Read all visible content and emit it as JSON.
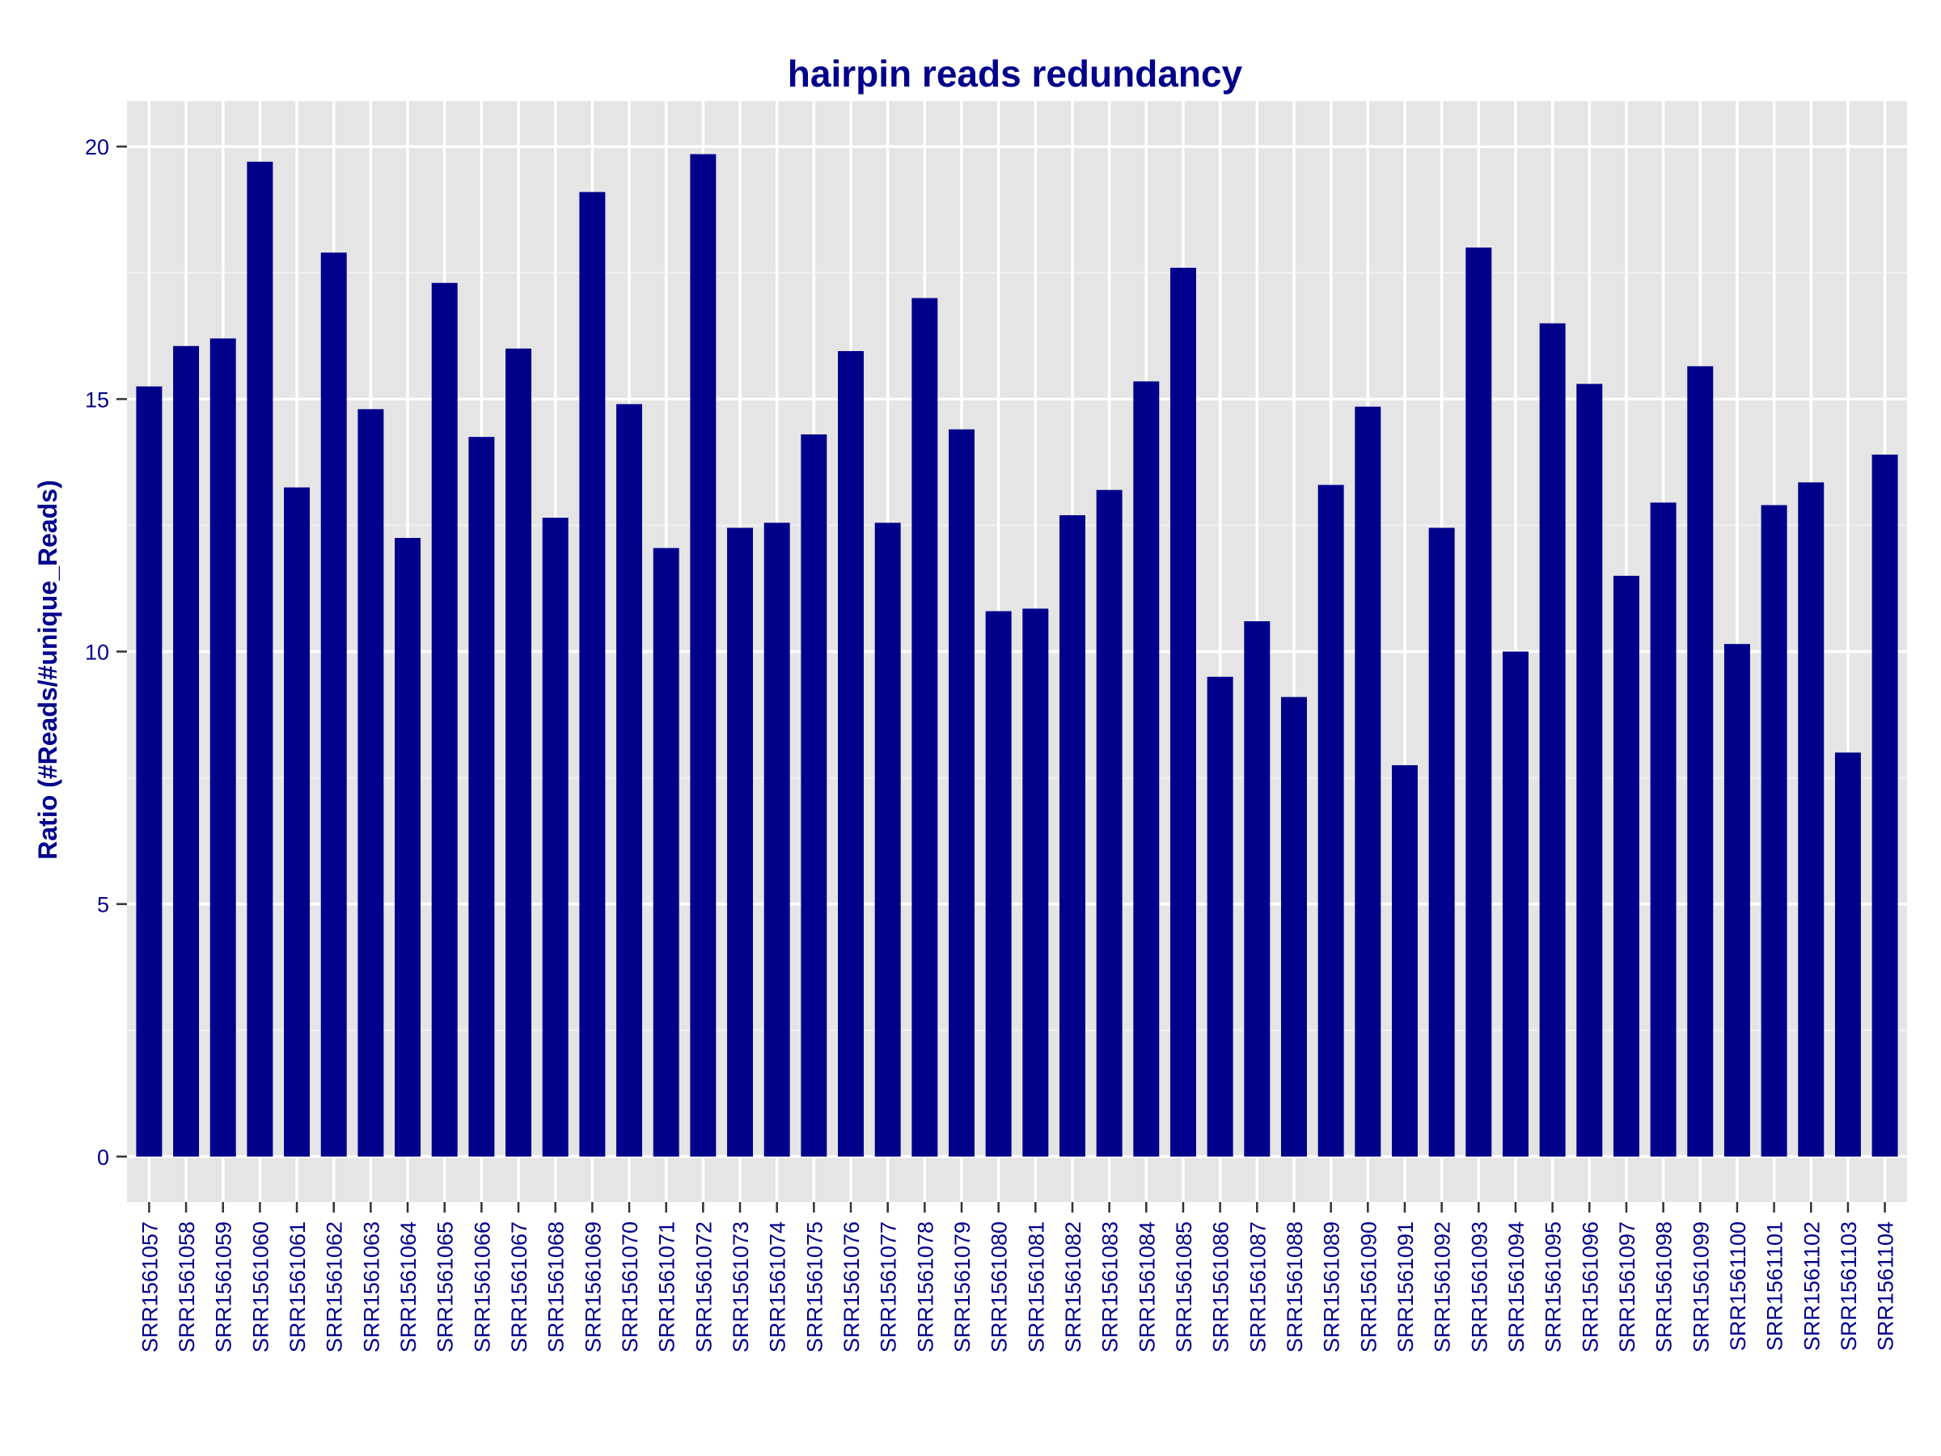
{
  "chart_data": {
    "type": "bar",
    "title": "hairpin reads redundancy",
    "xlabel": "",
    "ylabel": "Ratio (#Reads/#unique_Reads)",
    "ylim": [
      -0.9,
      20.9
    ],
    "yticks": [
      0,
      5,
      10,
      15,
      20
    ],
    "grid": true,
    "legend": "none",
    "colors": {
      "bar": "#00008B",
      "panel": "#E5E5E5",
      "grid_major": "#FFFFFF",
      "grid_minor": "#F2F2F2",
      "text": "#00008B"
    },
    "categories": [
      "SRR1561057",
      "SRR1561058",
      "SRR1561059",
      "SRR1561060",
      "SRR1561061",
      "SRR1561062",
      "SRR1561063",
      "SRR1561064",
      "SRR1561065",
      "SRR1561066",
      "SRR1561067",
      "SRR1561068",
      "SRR1561069",
      "SRR1561070",
      "SRR1561071",
      "SRR1561072",
      "SRR1561073",
      "SRR1561074",
      "SRR1561075",
      "SRR1561076",
      "SRR1561077",
      "SRR1561078",
      "SRR1561079",
      "SRR1561080",
      "SRR1561081",
      "SRR1561082",
      "SRR1561083",
      "SRR1561084",
      "SRR1561085",
      "SRR1561086",
      "SRR1561087",
      "SRR1561088",
      "SRR1561089",
      "SRR1561090",
      "SRR1561091",
      "SRR1561092",
      "SRR1561093",
      "SRR1561094",
      "SRR1561095",
      "SRR1561096",
      "SRR1561097",
      "SRR1561098",
      "SRR1561099",
      "SRR1561100",
      "SRR1561101",
      "SRR1561102",
      "SRR1561103",
      "SRR1561104"
    ],
    "values": [
      15.25,
      16.05,
      16.2,
      19.7,
      13.25,
      17.9,
      14.8,
      12.25,
      17.3,
      14.25,
      16.0,
      12.65,
      19.1,
      14.9,
      12.05,
      19.85,
      12.45,
      12.55,
      14.3,
      15.95,
      12.55,
      17.0,
      14.4,
      10.8,
      10.85,
      12.7,
      13.2,
      15.35,
      17.6,
      9.5,
      10.6,
      9.1,
      13.3,
      14.85,
      7.75,
      12.45,
      18.0,
      10.0,
      16.5,
      15.3,
      11.5,
      12.95,
      15.65,
      10.15,
      12.9,
      13.35,
      8.0,
      13.9
    ]
  }
}
